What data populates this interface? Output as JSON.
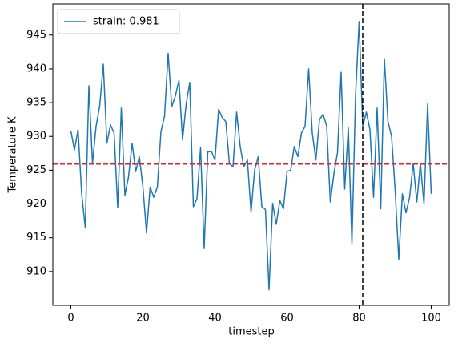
{
  "chart_data": {
    "type": "line",
    "xlabel": "timestep",
    "ylabel": "Temperature K",
    "x": [
      0,
      1,
      2,
      3,
      4,
      5,
      6,
      7,
      8,
      9,
      10,
      11,
      12,
      13,
      14,
      15,
      16,
      17,
      18,
      19,
      20,
      21,
      22,
      23,
      24,
      25,
      26,
      27,
      28,
      29,
      30,
      31,
      32,
      33,
      34,
      35,
      36,
      37,
      38,
      39,
      40,
      41,
      42,
      43,
      44,
      45,
      46,
      47,
      48,
      49,
      50,
      51,
      52,
      53,
      54,
      55,
      56,
      57,
      58,
      59,
      60,
      61,
      62,
      63,
      64,
      65,
      66,
      67,
      68,
      69,
      70,
      71,
      72,
      73,
      74,
      75,
      76,
      77,
      78,
      79,
      80,
      81,
      82,
      83,
      84,
      85,
      86,
      87,
      88,
      89,
      90,
      91,
      92,
      93,
      94,
      95,
      96,
      97,
      98,
      99,
      100
    ],
    "series": [
      {
        "name": "strain: 0.981",
        "color": "#1f77b4",
        "values": [
          930.8,
          928,
          931,
          921.5,
          916.5,
          937.5,
          926,
          931.5,
          934.5,
          940.7,
          929,
          931.7,
          930.5,
          919.5,
          934.2,
          921.3,
          924,
          929,
          924.8,
          927,
          922.5,
          915.7,
          922.5,
          921,
          922.5,
          930.7,
          933,
          942.3,
          934.4,
          936,
          938.3,
          929.5,
          934.8,
          938,
          919.6,
          920.8,
          928.3,
          913.4,
          927.7,
          927.8,
          926.5,
          934,
          932.8,
          932.2,
          926,
          925.5,
          933.6,
          928.5,
          925.5,
          926.5,
          918.8,
          925,
          927,
          919.6,
          919.2,
          907.3,
          920.1,
          917,
          920.5,
          919.3,
          924.8,
          925,
          928.5,
          927,
          930.5,
          931.5,
          940,
          930.5,
          926.5,
          932.5,
          933.3,
          931.5,
          920.3,
          924.5,
          927.6,
          939.5,
          922.2,
          931.3,
          914.1,
          936,
          947,
          931.5,
          933.6,
          931,
          921,
          934.2,
          919.3,
          941.5,
          932.2,
          930,
          922,
          911.8,
          921.5,
          918.7,
          921,
          926,
          920.3,
          926,
          920,
          934.8,
          921.5
        ]
      }
    ],
    "hline": {
      "value": 925.9,
      "color": "#d62728"
    },
    "vline": {
      "value": 81,
      "color": "#000000"
    },
    "xlim": [
      -5,
      105
    ],
    "ylim": [
      905,
      949.6
    ],
    "xticks": [
      0,
      20,
      40,
      60,
      80,
      100
    ],
    "yticks": [
      910,
      915,
      920,
      925,
      930,
      935,
      940,
      945
    ],
    "legend": "upper left",
    "grid": false
  }
}
